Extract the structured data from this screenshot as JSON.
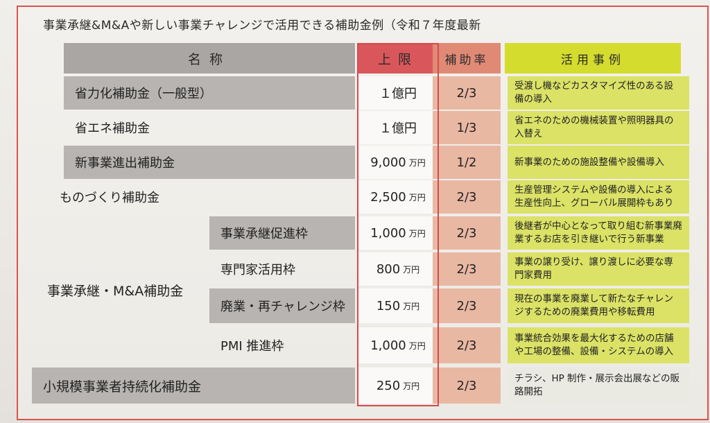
{
  "title": "事業承継&M&Aや新しい事業チャレンジで活用できる補助金例（令和７年度最新",
  "headers": {
    "name": "名称",
    "limit": "上限",
    "rate": "補助率",
    "use": "活用事例"
  },
  "unit": "万円",
  "rows": [
    {
      "name": "省力化補助金（一般型）",
      "limit": "１億円",
      "rate": "2/3",
      "use": "受渡し機などカスタマイズ性のある設備の導入"
    },
    {
      "name": "省エネ補助金",
      "limit": "１億円",
      "rate": "1/3",
      "use": "省エネのための機械装置や照明器具の入替え"
    },
    {
      "name": "新事業進出補助金",
      "limit": "9,000",
      "rate": "1/2",
      "use": "新事業のための施設整備や設備導入"
    },
    {
      "name": "ものづくり補助金",
      "limit": "2,500",
      "rate": "2/3",
      "use": "生産管理システムや設備の導入による生産性向上、グローバル展開枠もあり"
    },
    {
      "name": "事業承継促進枠",
      "limit": "1,000",
      "rate": "2/3",
      "use": "後継者が中心となって取り組む新事業廃業するお店を引き継いで行う新事業"
    },
    {
      "name": "専門家活用枠",
      "limit": "800",
      "rate": "2/3",
      "use": "事業の譲り受け、譲り渡しに必要な専門家費用"
    },
    {
      "name": "廃業・再チャレンジ枠",
      "limit": "150",
      "rate": "2/3",
      "use": "現在の事業を廃業して新たなチャレンジするための廃業費用や移転費用"
    },
    {
      "name": "PMI 推進枠",
      "limit": "1,000",
      "rate": "2/3",
      "use": "事業統合効果を最大化するための店舗や工場の整備、設備・システムの導入"
    },
    {
      "name": "小規模事業者持続化補助金",
      "limit": "250",
      "rate": "2/3",
      "use": "チラシ、HP 制作・展示会出展などの販路開拓"
    }
  ],
  "group_name": "事業承継・M&A補助金"
}
